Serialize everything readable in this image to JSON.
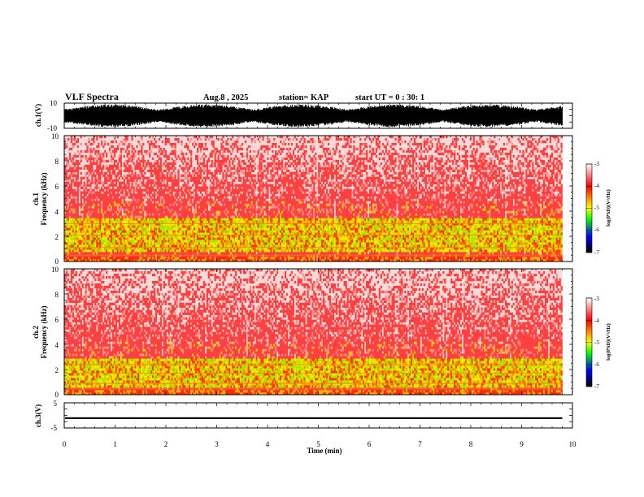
{
  "header": {
    "title": "VLF Spectra",
    "date": "Aug.8 , 2025",
    "station": "station= KAP",
    "start": "start UT = 0 : 30: 1"
  },
  "axis_labels": {
    "ch1_waveform": "ch.1(V)",
    "ch1_spec_line1": "ch.1",
    "ch1_spec_line2": "Frequency (kHz)",
    "ch2_spec_line1": "ch.2",
    "ch2_spec_line2": "Frequency (kHz)",
    "ch3_waveform": "ch.3(V)",
    "x": "Time (min)"
  },
  "colorbar": {
    "label": "log(PSD)(V²/Hz)",
    "ticks": [
      "-3",
      "-4",
      "-5",
      "-6",
      "-7"
    ],
    "colors": [
      "#ffffff",
      "#ff0000",
      "#ffff00",
      "#00ff00",
      "#0000ff",
      "#000000"
    ]
  },
  "chart_data": [
    {
      "type": "line",
      "name": "ch.1 waveform",
      "ylabel": "ch.1(V)",
      "ylim": [
        -10,
        10
      ],
      "yticks": [
        "10",
        "-10"
      ],
      "xlim": [
        0,
        10
      ],
      "xlabel": "Time (min)",
      "data_extent_min": 9.8,
      "amplitude_range": [
        -9,
        9
      ]
    },
    {
      "type": "heatmap",
      "name": "ch.1 spectrogram",
      "ylabel": "Frequency (kHz)",
      "ylim": [
        0,
        10
      ],
      "yticks": [
        "0",
        "2",
        "4",
        "6",
        "8",
        "10"
      ],
      "xlim": [
        0,
        10
      ],
      "green_band_khz": [
        0.8,
        3.4
      ]
    },
    {
      "type": "heatmap",
      "name": "ch.2 spectrogram",
      "ylabel": "Frequency (kHz)",
      "ylim": [
        0,
        10
      ],
      "yticks": [
        "0",
        "2",
        "4",
        "6",
        "8",
        "10"
      ],
      "xlim": [
        0,
        10
      ],
      "green_band_khz": [
        0.6,
        2.8
      ]
    },
    {
      "type": "line",
      "name": "ch.3 waveform",
      "ylabel": "ch.3(V)",
      "ylim": [
        -5,
        5
      ],
      "yticks": [
        "5",
        "-5"
      ],
      "xlim": [
        0,
        10
      ],
      "xlabel": "Time (min)",
      "xticks": [
        "0",
        "1",
        "2",
        "3",
        "4",
        "5",
        "6",
        "7",
        "8",
        "9",
        "10"
      ],
      "level_v": -1.1,
      "amplitude_v": 0.35
    }
  ]
}
